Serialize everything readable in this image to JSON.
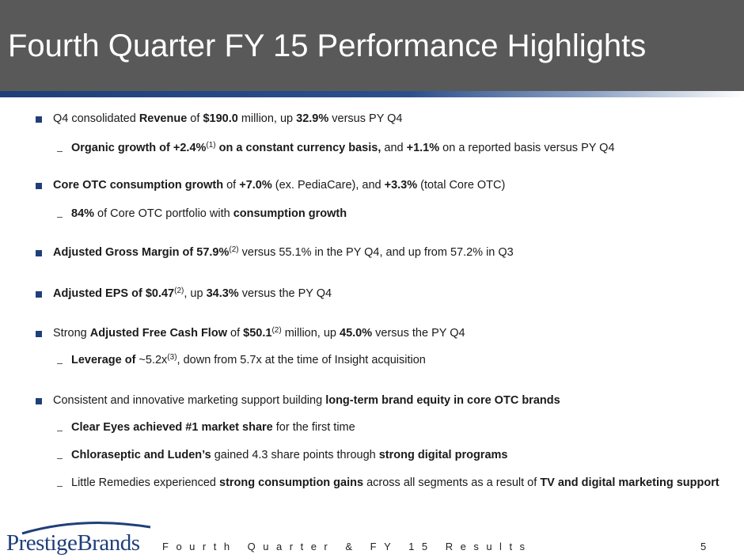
{
  "title": "Fourth Quarter FY 15 Performance Highlights",
  "bullets": [
    {
      "segs": [
        "Q4 consolidated ",
        "Revenue",
        " of ",
        "$190.0",
        " million, up ",
        "32.9%",
        " versus PY Q4"
      ]
    },
    {
      "segs": [
        "Organic growth of +2.4%",
        "(1)",
        " on a constant currency basis,",
        " and ",
        "+1.1%",
        " on a reported basis versus PY Q4"
      ]
    },
    {
      "segs": [
        "Core OTC consumption growth",
        " of ",
        "+7.0%",
        " (ex. PediaCare), and ",
        "+3.3%",
        " (total Core OTC)"
      ]
    },
    {
      "segs": [
        "84%",
        " of Core OTC portfolio with ",
        "consumption growth"
      ]
    },
    {
      "segs": [
        "Adjusted Gross Margin of 57.9%",
        "(2)",
        " versus 55.1% in the PY Q4, and up from 57.2% in Q3"
      ]
    },
    {
      "segs": [
        "Adjusted EPS of $0.47",
        "(2)",
        ", up ",
        "34.3%",
        " versus the PY Q4"
      ]
    },
    {
      "segs": [
        "Strong ",
        "Adjusted Free Cash Flow",
        " of ",
        "$50.1",
        "(2)",
        " million, up ",
        "45.0%",
        " versus the PY Q4"
      ]
    },
    {
      "segs": [
        "Leverage of ",
        "~5.2x",
        "(3)",
        ", down from 5.7x at the time of Insight acquisition"
      ]
    },
    {
      "segs": [
        "Consistent and innovative marketing support building ",
        "long-term brand equity in core OTC brands"
      ]
    },
    {
      "segs": [
        "Clear Eyes achieved #1 market share",
        " for the first time"
      ]
    },
    {
      "segs": [
        "Chloraseptic and Luden’s",
        " gained 4.3 share points through ",
        "strong digital programs"
      ]
    },
    {
      "segs": [
        "Little Remedies experienced ",
        "strong consumption gains",
        " across all segments as a result of ",
        "TV and digital marketing support"
      ]
    }
  ],
  "footer": {
    "text": "Fourth Quarter & FY 15 Results",
    "page": "5",
    "logo_text": "PrestigeBrands"
  }
}
